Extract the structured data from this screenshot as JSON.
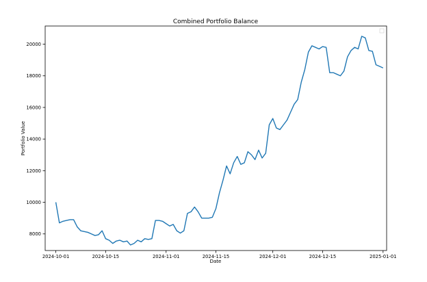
{
  "chart_data": {
    "type": "line",
    "title": "Combined Portfolio Balance",
    "xlabel": "Date",
    "ylabel": "Portfolio Value",
    "x_ticks": [
      "2024-10-01",
      "2024-10-15",
      "2024-11-01",
      "2024-11-15",
      "2024-12-01",
      "2024-12-15",
      "2025-01-01"
    ],
    "y_ticks": [
      8000,
      10000,
      12000,
      14000,
      16000,
      18000,
      20000
    ],
    "xlim": [
      "2024-09-28",
      "2025-01-02"
    ],
    "ylim": [
      6950,
      21150
    ],
    "grid": false,
    "legend": {
      "placement": "top-right",
      "entries": []
    },
    "series": [
      {
        "color": "#1f77b4",
        "points": [
          [
            "2024-10-01",
            10000
          ],
          [
            "2024-10-02",
            8700
          ],
          [
            "2024-10-03",
            8800
          ],
          [
            "2024-10-04",
            8850
          ],
          [
            "2024-10-05",
            8900
          ],
          [
            "2024-10-06",
            8900
          ],
          [
            "2024-10-07",
            8450
          ],
          [
            "2024-10-08",
            8200
          ],
          [
            "2024-10-09",
            8150
          ],
          [
            "2024-10-10",
            8100
          ],
          [
            "2024-10-11",
            8000
          ],
          [
            "2024-10-12",
            7900
          ],
          [
            "2024-10-13",
            7950
          ],
          [
            "2024-10-14",
            8200
          ],
          [
            "2024-10-15",
            7700
          ],
          [
            "2024-10-16",
            7600
          ],
          [
            "2024-10-17",
            7400
          ],
          [
            "2024-10-18",
            7550
          ],
          [
            "2024-10-19",
            7600
          ],
          [
            "2024-10-20",
            7500
          ],
          [
            "2024-10-21",
            7550
          ],
          [
            "2024-10-22",
            7300
          ],
          [
            "2024-10-23",
            7400
          ],
          [
            "2024-10-24",
            7600
          ],
          [
            "2024-10-25",
            7500
          ],
          [
            "2024-10-26",
            7700
          ],
          [
            "2024-10-27",
            7650
          ],
          [
            "2024-10-28",
            7700
          ],
          [
            "2024-10-29",
            8850
          ],
          [
            "2024-10-30",
            8850
          ],
          [
            "2024-10-31",
            8800
          ],
          [
            "2024-11-01",
            8650
          ],
          [
            "2024-11-02",
            8500
          ],
          [
            "2024-11-03",
            8600
          ],
          [
            "2024-11-04",
            8200
          ],
          [
            "2024-11-05",
            8050
          ],
          [
            "2024-11-06",
            8200
          ],
          [
            "2024-11-07",
            9300
          ],
          [
            "2024-11-08",
            9400
          ],
          [
            "2024-11-09",
            9700
          ],
          [
            "2024-11-10",
            9400
          ],
          [
            "2024-11-11",
            9000
          ],
          [
            "2024-11-12",
            9000
          ],
          [
            "2024-11-13",
            9000
          ],
          [
            "2024-11-14",
            9050
          ],
          [
            "2024-11-15",
            9600
          ],
          [
            "2024-11-16",
            10600
          ],
          [
            "2024-11-17",
            11400
          ],
          [
            "2024-11-18",
            12300
          ],
          [
            "2024-11-19",
            11800
          ],
          [
            "2024-11-20",
            12500
          ],
          [
            "2024-11-21",
            12900
          ],
          [
            "2024-11-22",
            12400
          ],
          [
            "2024-11-23",
            12500
          ],
          [
            "2024-11-24",
            13200
          ],
          [
            "2024-11-25",
            13000
          ],
          [
            "2024-11-26",
            12700
          ],
          [
            "2024-11-27",
            13300
          ],
          [
            "2024-11-28",
            12800
          ],
          [
            "2024-11-29",
            13100
          ],
          [
            "2024-11-30",
            14900
          ],
          [
            "2024-12-01",
            15300
          ],
          [
            "2024-12-02",
            14700
          ],
          [
            "2024-12-03",
            14600
          ],
          [
            "2024-12-04",
            14900
          ],
          [
            "2024-12-05",
            15200
          ],
          [
            "2024-12-06",
            15700
          ],
          [
            "2024-12-07",
            16200
          ],
          [
            "2024-12-08",
            16500
          ],
          [
            "2024-12-09",
            17600
          ],
          [
            "2024-12-10",
            18400
          ],
          [
            "2024-12-11",
            19500
          ],
          [
            "2024-12-12",
            19900
          ],
          [
            "2024-12-13",
            19800
          ],
          [
            "2024-12-14",
            19700
          ],
          [
            "2024-12-15",
            19850
          ],
          [
            "2024-12-16",
            19800
          ],
          [
            "2024-12-17",
            18200
          ],
          [
            "2024-12-18",
            18200
          ],
          [
            "2024-12-19",
            18100
          ],
          [
            "2024-12-20",
            18000
          ],
          [
            "2024-12-21",
            18300
          ],
          [
            "2024-12-22",
            19200
          ],
          [
            "2024-12-23",
            19600
          ],
          [
            "2024-12-24",
            19800
          ],
          [
            "2024-12-25",
            19700
          ],
          [
            "2024-12-26",
            20500
          ],
          [
            "2024-12-27",
            20400
          ],
          [
            "2024-12-28",
            19600
          ],
          [
            "2024-12-29",
            19550
          ],
          [
            "2024-12-30",
            18700
          ],
          [
            "2024-12-31",
            18600
          ],
          [
            "2025-01-01",
            18500
          ]
        ]
      }
    ]
  }
}
